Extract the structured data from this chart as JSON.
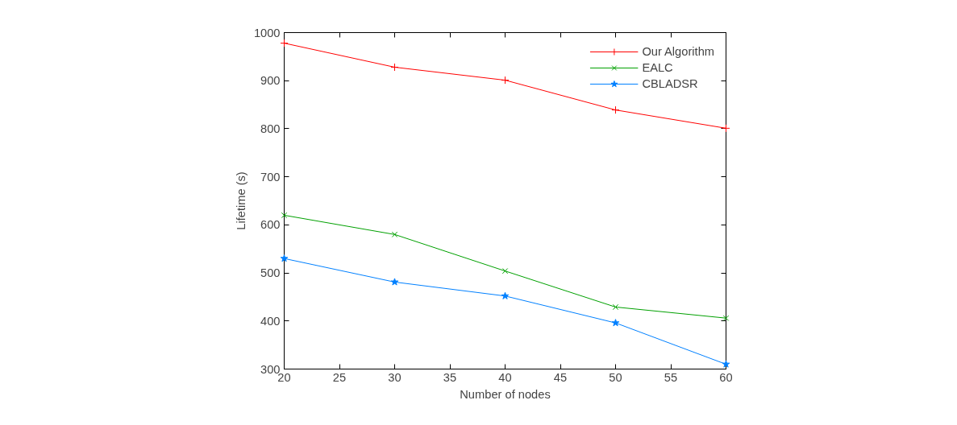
{
  "chart_data": {
    "type": "line",
    "xlabel": "Number of nodes",
    "ylabel": "Lifetime (s)",
    "x": [
      20,
      30,
      40,
      50,
      60
    ],
    "series": [
      {
        "name": "Our Algorithm",
        "color": "#ff0000",
        "marker": "cross",
        "values": [
          978,
          928,
          901,
          839,
          801
        ]
      },
      {
        "name": "EALC",
        "color": "#00a000",
        "marker": "x",
        "values": [
          620,
          580,
          504,
          429,
          406
        ]
      },
      {
        "name": "CBLADSR",
        "color": "#0080ff",
        "marker": "star",
        "values": [
          530,
          481,
          452,
          396,
          310
        ]
      }
    ],
    "xlim": [
      20,
      60
    ],
    "xticks": [
      20,
      25,
      30,
      35,
      40,
      45,
      50,
      55,
      60
    ],
    "ylim": [
      300,
      1000
    ],
    "yticks": [
      300,
      400,
      500,
      600,
      700,
      800,
      900,
      1000
    ],
    "grid": false,
    "legend": "top right",
    "line_style": "solid"
  }
}
